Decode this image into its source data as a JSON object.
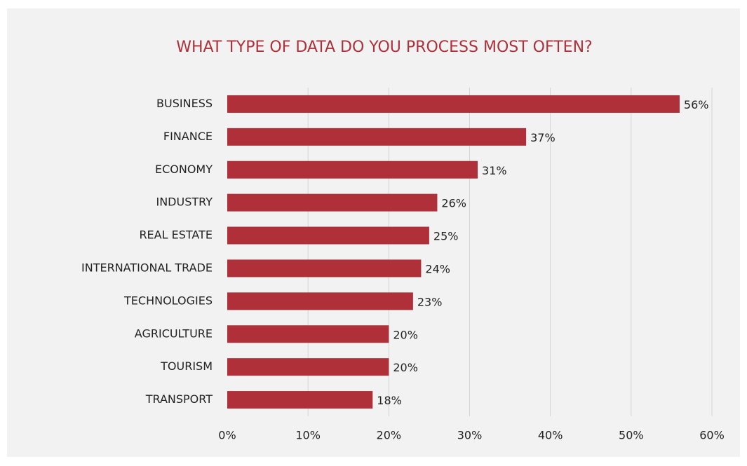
{
  "chart_data": {
    "type": "bar",
    "orientation": "horizontal",
    "title": "WHAT TYPE OF DATA DO YOU PROCESS MOST OFTEN?",
    "categories": [
      "BUSINESS",
      "FINANCE",
      "ECONOMY",
      "INDUSTRY",
      "REAL ESTATE",
      "INTERNATIONAL TRADE",
      "TECHNOLOGIES",
      "AGRICULTURE",
      "TOURISM",
      "TRANSPORT"
    ],
    "values": [
      56,
      37,
      31,
      26,
      25,
      24,
      23,
      20,
      20,
      18
    ],
    "value_labels": [
      "56%",
      "37%",
      "31%",
      "26%",
      "25%",
      "24%",
      "23%",
      "20%",
      "20%",
      "18%"
    ],
    "color": "#b0303a",
    "xlim": [
      0,
      60
    ],
    "xticks": [
      {
        "value": 0,
        "label": "0%"
      },
      {
        "value": 10,
        "label": "10%"
      },
      {
        "value": 20,
        "label": "20%"
      },
      {
        "value": 30,
        "label": "30%"
      },
      {
        "value": 40,
        "label": "40%"
      },
      {
        "value": 50,
        "label": "50%"
      },
      {
        "value": 60,
        "label": "60%"
      }
    ],
    "grid": true
  }
}
